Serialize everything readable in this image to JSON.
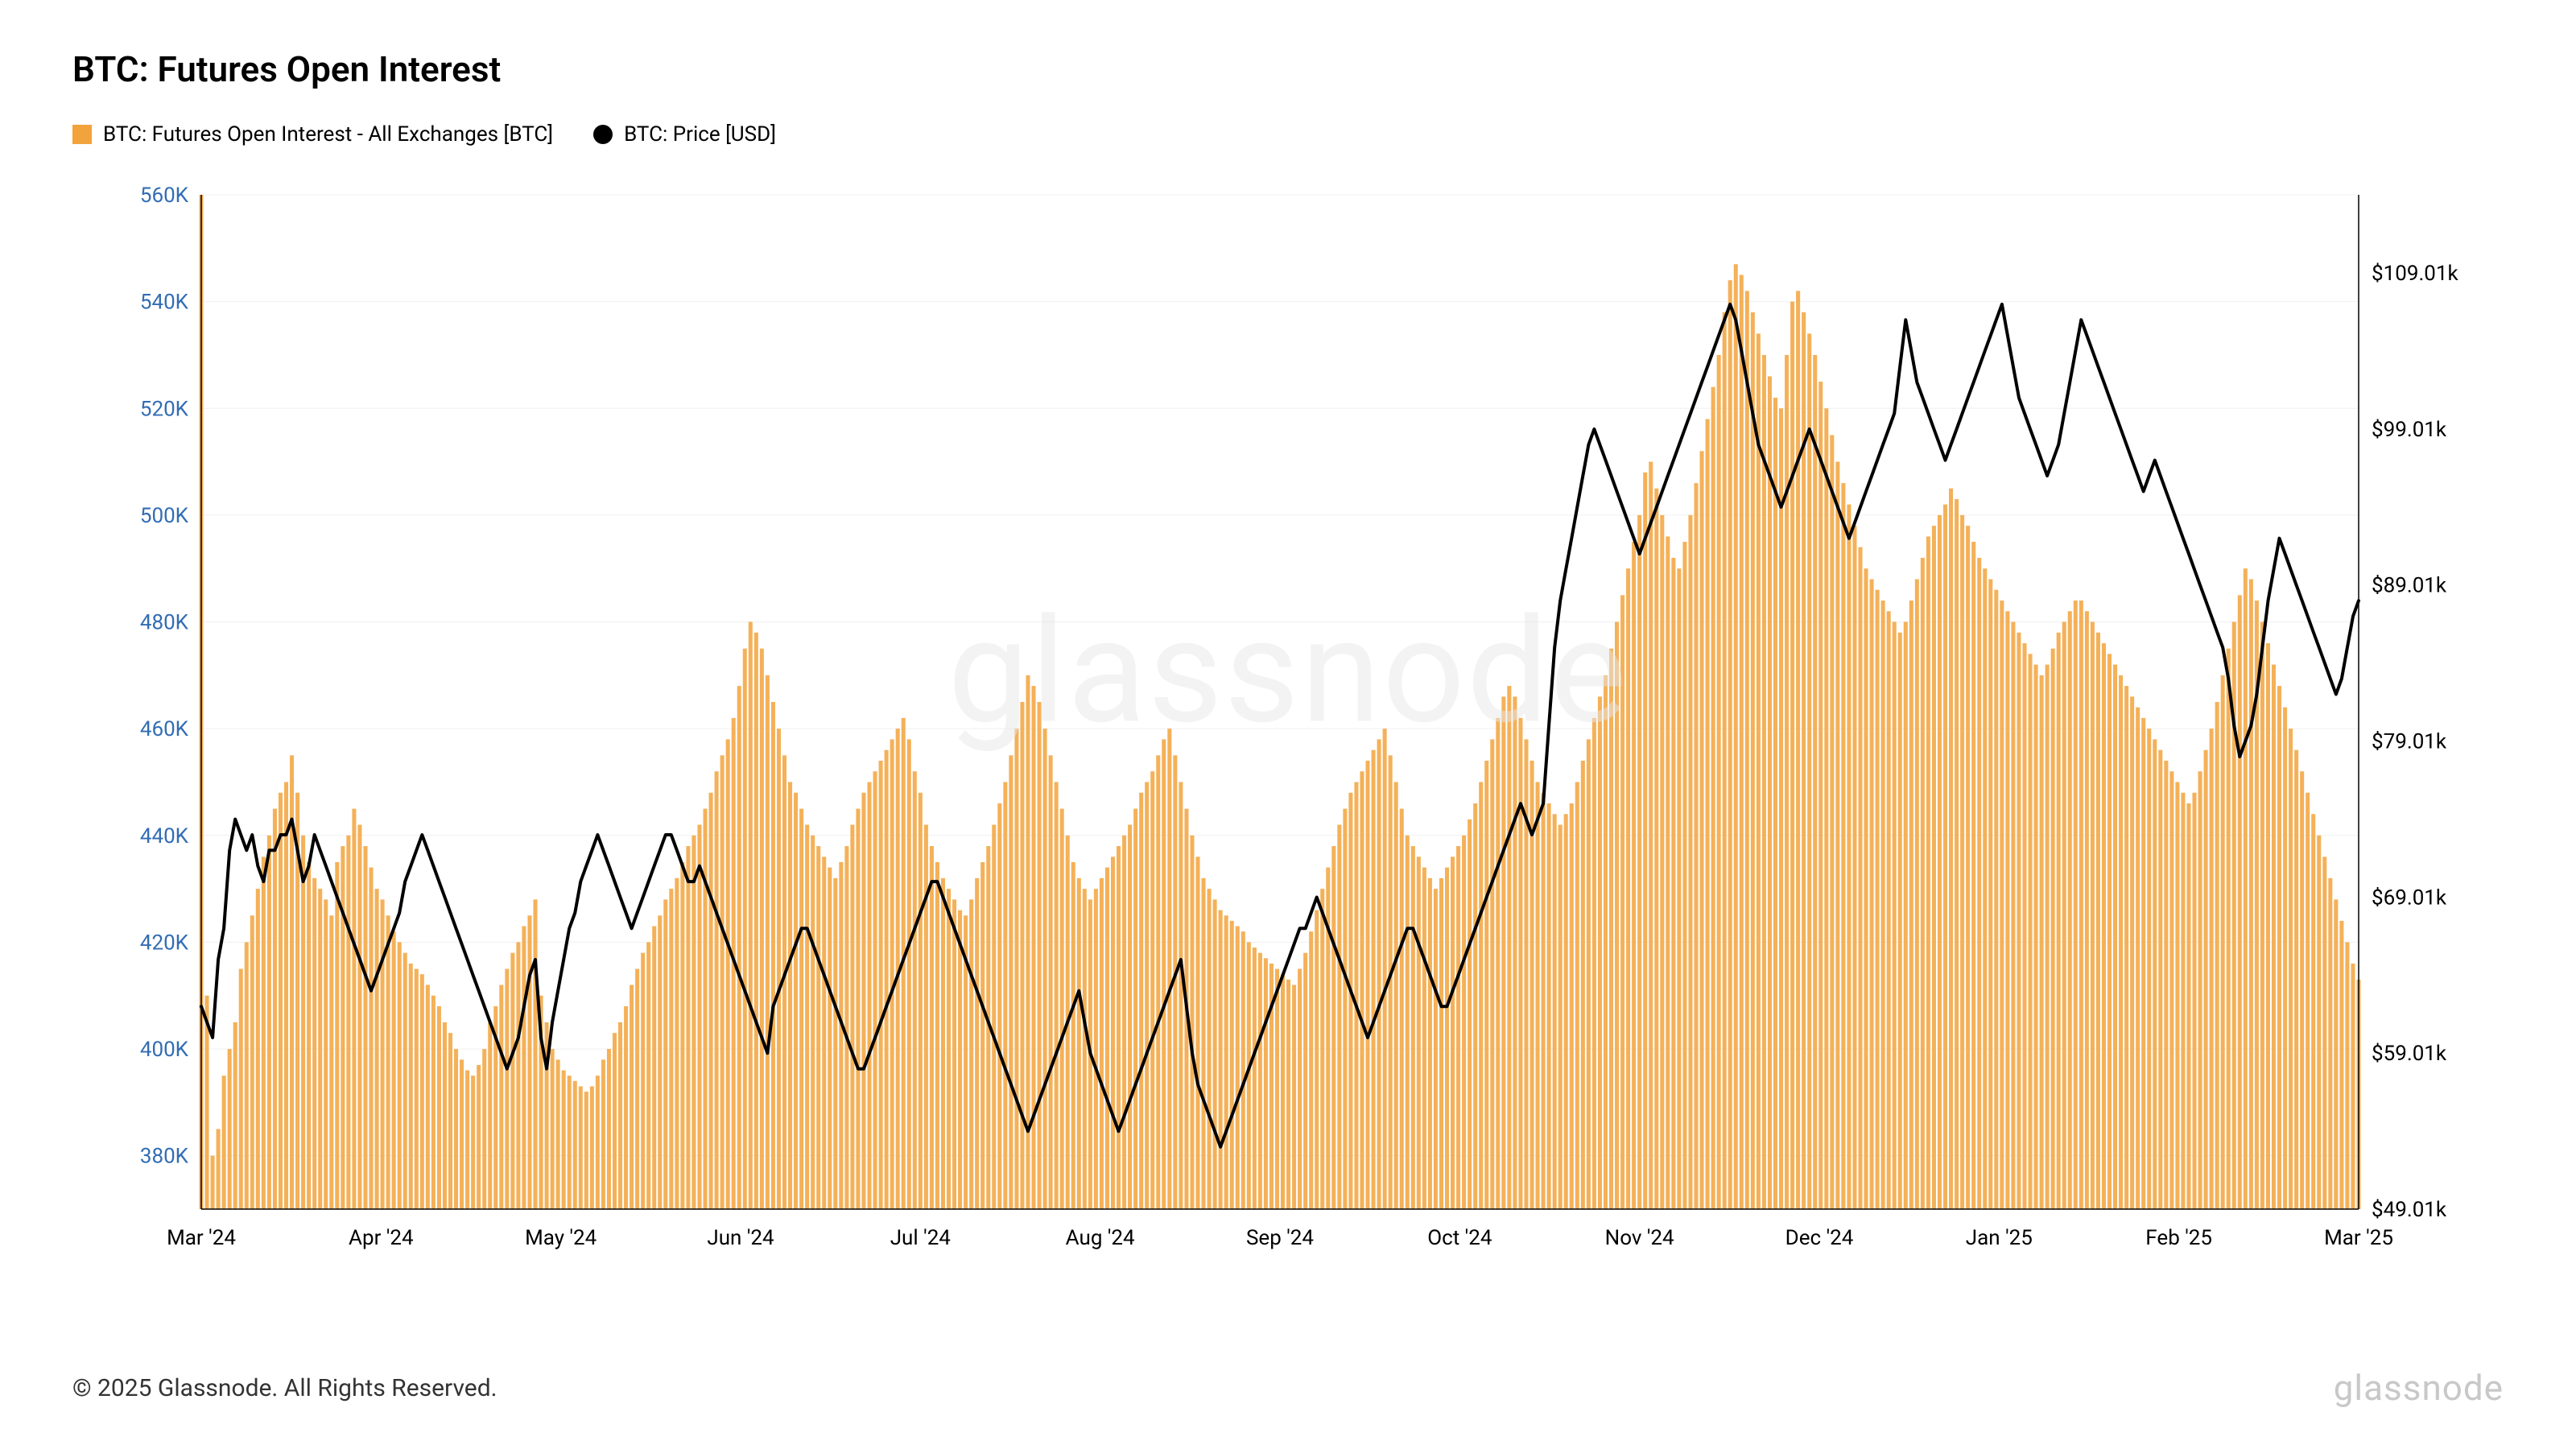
{
  "title": "BTC: Futures Open Interest",
  "legend": {
    "bar": {
      "label": "BTC: Futures Open Interest - All Exchanges [BTC]",
      "color": "#f2a33c"
    },
    "line": {
      "label": "BTC: Price [USD]",
      "color": "#000000"
    }
  },
  "watermark": "glassnode",
  "copyright": "© 2025 Glassnode. All Rights Reserved.",
  "brand": "glassnode",
  "chart": {
    "type": "dual-axis-bar-line",
    "background_color": "#ffffff",
    "grid_color": "#f0f0f0",
    "bar_color": "#f2a33c",
    "bar_opacity": 0.85,
    "line_color": "#000000",
    "line_width": 4,
    "y_left": {
      "label_color": "#326db3",
      "min": 370,
      "max": 560,
      "ticks": [
        380,
        400,
        420,
        440,
        460,
        480,
        500,
        520,
        540,
        560
      ],
      "tick_labels": [
        "380K",
        "400K",
        "420K",
        "440K",
        "460K",
        "480K",
        "500K",
        "520K",
        "540K",
        "560K"
      ]
    },
    "y_right": {
      "label_color": "#000000",
      "min": 49.01,
      "max": 114.01,
      "ticks": [
        49.01,
        59.01,
        69.01,
        79.01,
        89.01,
        99.01,
        109.01
      ],
      "tick_labels": [
        "$49.01k",
        "$59.01k",
        "$69.01k",
        "$79.01k",
        "$89.01k",
        "$99.01k",
        "$109.01k"
      ]
    },
    "x": {
      "ticks": [
        "Mar '24",
        "Apr '24",
        "May '24",
        "Jun '24",
        "Jul '24",
        "Aug '24",
        "Sep '24",
        "Oct '24",
        "Nov '24",
        "Dec '24",
        "Jan '25",
        "Feb '25",
        "Mar '25"
      ]
    },
    "bars": [
      560,
      410,
      380,
      385,
      395,
      400,
      405,
      415,
      420,
      425,
      430,
      436,
      440,
      445,
      448,
      450,
      455,
      448,
      440,
      435,
      432,
      430,
      428,
      425,
      435,
      438,
      440,
      445,
      442,
      438,
      434,
      430,
      428,
      425,
      422,
      420,
      418,
      416,
      415,
      414,
      412,
      410,
      408,
      405,
      403,
      400,
      398,
      396,
      395,
      397,
      400,
      405,
      408,
      412,
      415,
      418,
      420,
      423,
      425,
      428,
      410,
      405,
      400,
      398,
      396,
      395,
      394,
      393,
      392,
      393,
      395,
      398,
      400,
      403,
      405,
      408,
      412,
      415,
      418,
      420,
      423,
      425,
      428,
      430,
      432,
      435,
      438,
      440,
      442,
      445,
      448,
      452,
      455,
      458,
      462,
      468,
      475,
      480,
      478,
      475,
      470,
      465,
      460,
      455,
      450,
      448,
      445,
      442,
      440,
      438,
      436,
      434,
      432,
      435,
      438,
      442,
      445,
      448,
      450,
      452,
      454,
      456,
      458,
      460,
      462,
      458,
      452,
      448,
      442,
      438,
      435,
      432,
      430,
      428,
      426,
      425,
      428,
      432,
      435,
      438,
      442,
      446,
      450,
      455,
      460,
      465,
      470,
      468,
      465,
      460,
      455,
      450,
      445,
      440,
      435,
      432,
      430,
      428,
      430,
      432,
      434,
      436,
      438,
      440,
      442,
      445,
      448,
      450,
      452,
      455,
      458,
      460,
      455,
      450,
      445,
      440,
      436,
      432,
      430,
      428,
      426,
      425,
      424,
      423,
      422,
      420,
      419,
      418,
      417,
      416,
      415,
      414,
      413,
      412,
      415,
      418,
      422,
      426,
      430,
      434,
      438,
      442,
      445,
      448,
      450,
      452,
      454,
      456,
      458,
      460,
      455,
      450,
      445,
      440,
      438,
      436,
      434,
      432,
      430,
      432,
      434,
      436,
      438,
      440,
      443,
      446,
      450,
      454,
      458,
      462,
      466,
      468,
      466,
      462,
      458,
      454,
      450,
      448,
      446,
      444,
      442,
      444,
      446,
      450,
      454,
      458,
      462,
      466,
      470,
      475,
      480,
      485,
      490,
      495,
      500,
      508,
      510,
      505,
      500,
      496,
      492,
      490,
      495,
      500,
      506,
      512,
      518,
      524,
      530,
      538,
      544,
      547,
      545,
      542,
      538,
      534,
      530,
      526,
      522,
      520,
      530,
      540,
      542,
      538,
      534,
      530,
      525,
      520,
      515,
      510,
      506,
      502,
      498,
      494,
      490,
      488,
      486,
      484,
      482,
      480,
      478,
      480,
      484,
      488,
      492,
      496,
      498,
      500,
      502,
      505,
      503,
      500,
      498,
      495,
      492,
      490,
      488,
      486,
      484,
      482,
      480,
      478,
      476,
      474,
      472,
      470,
      472,
      475,
      478,
      480,
      482,
      484,
      484,
      482,
      480,
      478,
      476,
      474,
      472,
      470,
      468,
      466,
      464,
      462,
      460,
      458,
      456,
      454,
      452,
      450,
      448,
      446,
      448,
      452,
      456,
      460,
      465,
      470,
      475,
      480,
      485,
      490,
      488,
      484,
      480,
      476,
      472,
      468,
      464,
      460,
      456,
      452,
      448,
      444,
      440,
      436,
      432,
      428,
      424,
      420,
      416,
      413
    ],
    "line": [
      62,
      61,
      60,
      65,
      67,
      72,
      74,
      73,
      72,
      73,
      71,
      70,
      72,
      72,
      73,
      73,
      74,
      72,
      70,
      71,
      73,
      72,
      71,
      70,
      69,
      68,
      67,
      66,
      65,
      64,
      63,
      64,
      65,
      66,
      67,
      68,
      70,
      71,
      72,
      73,
      72,
      71,
      70,
      69,
      68,
      67,
      66,
      65,
      64,
      63,
      62,
      61,
      60,
      59,
      58,
      59,
      60,
      62,
      64,
      65,
      60,
      58,
      61,
      63,
      65,
      67,
      68,
      70,
      71,
      72,
      73,
      72,
      71,
      70,
      69,
      68,
      67,
      68,
      69,
      70,
      71,
      72,
      73,
      73,
      72,
      71,
      70,
      70,
      71,
      70,
      69,
      68,
      67,
      66,
      65,
      64,
      63,
      62,
      61,
      60,
      59,
      62,
      63,
      64,
      65,
      66,
      67,
      67,
      66,
      65,
      64,
      63,
      62,
      61,
      60,
      59,
      58,
      58,
      59,
      60,
      61,
      62,
      63,
      64,
      65,
      66,
      67,
      68,
      69,
      70,
      70,
      69,
      68,
      67,
      66,
      65,
      64,
      63,
      62,
      61,
      60,
      59,
      58,
      57,
      56,
      55,
      54,
      55,
      56,
      57,
      58,
      59,
      60,
      61,
      62,
      63,
      61,
      59,
      58,
      57,
      56,
      55,
      54,
      55,
      56,
      57,
      58,
      59,
      60,
      61,
      62,
      63,
      64,
      65,
      62,
      59,
      57,
      56,
      55,
      54,
      53,
      54,
      55,
      56,
      57,
      58,
      59,
      60,
      61,
      62,
      63,
      64,
      65,
      66,
      67,
      67,
      68,
      69,
      68,
      67,
      66,
      65,
      64,
      63,
      62,
      61,
      60,
      61,
      62,
      63,
      64,
      65,
      66,
      67,
      67,
      66,
      65,
      64,
      63,
      62,
      62,
      63,
      64,
      65,
      66,
      67,
      68,
      69,
      70,
      71,
      72,
      73,
      74,
      75,
      74,
      73,
      74,
      75,
      80,
      85,
      88,
      90,
      92,
      94,
      96,
      98,
      99,
      98,
      97,
      96,
      95,
      94,
      93,
      92,
      91,
      92,
      93,
      94,
      95,
      96,
      97,
      98,
      99,
      100,
      101,
      102,
      103,
      104,
      105,
      106,
      107,
      106,
      104,
      102,
      100,
      98,
      97,
      96,
      95,
      94,
      95,
      96,
      97,
      98,
      99,
      98,
      97,
      96,
      95,
      94,
      93,
      92,
      93,
      94,
      95,
      96,
      97,
      98,
      99,
      100,
      103,
      106,
      104,
      102,
      101,
      100,
      99,
      98,
      97,
      98,
      99,
      100,
      101,
      102,
      103,
      104,
      105,
      106,
      107,
      105,
      103,
      101,
      100,
      99,
      98,
      97,
      96,
      97,
      98,
      100,
      102,
      104,
      106,
      105,
      104,
      103,
      102,
      101,
      100,
      99,
      98,
      97,
      96,
      95,
      96,
      97,
      96,
      95,
      94,
      93,
      92,
      91,
      90,
      89,
      88,
      87,
      86,
      85,
      83,
      80,
      78,
      79,
      80,
      82,
      85,
      88,
      90,
      92,
      91,
      90,
      89,
      88,
      87,
      86,
      85,
      84,
      83,
      82,
      83,
      85,
      87,
      88
    ]
  }
}
